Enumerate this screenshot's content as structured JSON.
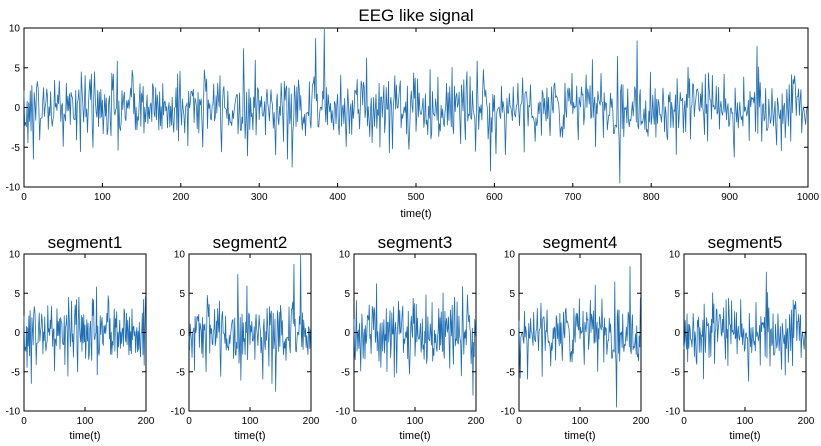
{
  "chart_data": [
    {
      "id": "main",
      "type": "line",
      "title": "EEG like signal",
      "xlabel": "time(t)",
      "ylabel": "",
      "xlim": [
        0,
        1000
      ],
      "ylim": [
        -10,
        10
      ],
      "xticks": [
        0,
        100,
        200,
        300,
        400,
        500,
        600,
        700,
        800,
        900,
        1000
      ],
      "yticks": [
        -10,
        -5,
        0,
        5,
        10
      ],
      "grid": false,
      "color": "#1f6eb4",
      "x_start": 0,
      "x_step": 1,
      "n_points": 1000,
      "noise_sd": 2.3,
      "extremes": [
        {
          "x": 383,
          "y": 10
        },
        {
          "x": 760,
          "y": -9.5
        },
        {
          "x": 595,
          "y": -8
        },
        {
          "x": 372,
          "y": 8.7
        },
        {
          "x": 782,
          "y": 8.4
        },
        {
          "x": 935,
          "y": 7.7
        },
        {
          "x": 12,
          "y": -6.5
        },
        {
          "x": 342,
          "y": -7.5
        }
      ]
    },
    {
      "id": "segment1",
      "type": "line",
      "title": "segment1",
      "xlabel": "time(t)",
      "xlim": [
        0,
        200
      ],
      "ylim": [
        -10,
        10
      ],
      "xticks": [
        0,
        100,
        200
      ],
      "yticks": [
        -10,
        -5,
        0,
        5,
        10
      ],
      "color": "#1f6eb4",
      "source_range": [
        0,
        200
      ]
    },
    {
      "id": "segment2",
      "type": "line",
      "title": "segment2",
      "xlabel": "time(t)",
      "xlim": [
        0,
        200
      ],
      "ylim": [
        -10,
        10
      ],
      "xticks": [
        0,
        100,
        200
      ],
      "yticks": [
        -10,
        -5,
        0,
        5,
        10
      ],
      "color": "#1f6eb4",
      "source_range": [
        200,
        400
      ]
    },
    {
      "id": "segment3",
      "type": "line",
      "title": "segment3",
      "xlabel": "time(t)",
      "xlim": [
        0,
        200
      ],
      "ylim": [
        -10,
        10
      ],
      "xticks": [
        0,
        100,
        200
      ],
      "yticks": [
        -10,
        -5,
        0,
        5,
        10
      ],
      "color": "#1f6eb4",
      "source_range": [
        400,
        600
      ]
    },
    {
      "id": "segment4",
      "type": "line",
      "title": "segment4",
      "xlabel": "time(t)",
      "xlim": [
        0,
        200
      ],
      "ylim": [
        -10,
        10
      ],
      "xticks": [
        0,
        100,
        200
      ],
      "yticks": [
        -10,
        -5,
        0,
        5,
        10
      ],
      "color": "#1f6eb4",
      "source_range": [
        600,
        800
      ]
    },
    {
      "id": "segment5",
      "type": "line",
      "title": "segment5",
      "xlabel": "time(t)",
      "xlim": [
        0,
        200
      ],
      "ylim": [
        -10,
        10
      ],
      "xticks": [
        0,
        100,
        200
      ],
      "yticks": [
        -10,
        -5,
        0,
        5,
        10
      ],
      "color": "#1f6eb4",
      "source_range": [
        800,
        1000
      ]
    }
  ]
}
